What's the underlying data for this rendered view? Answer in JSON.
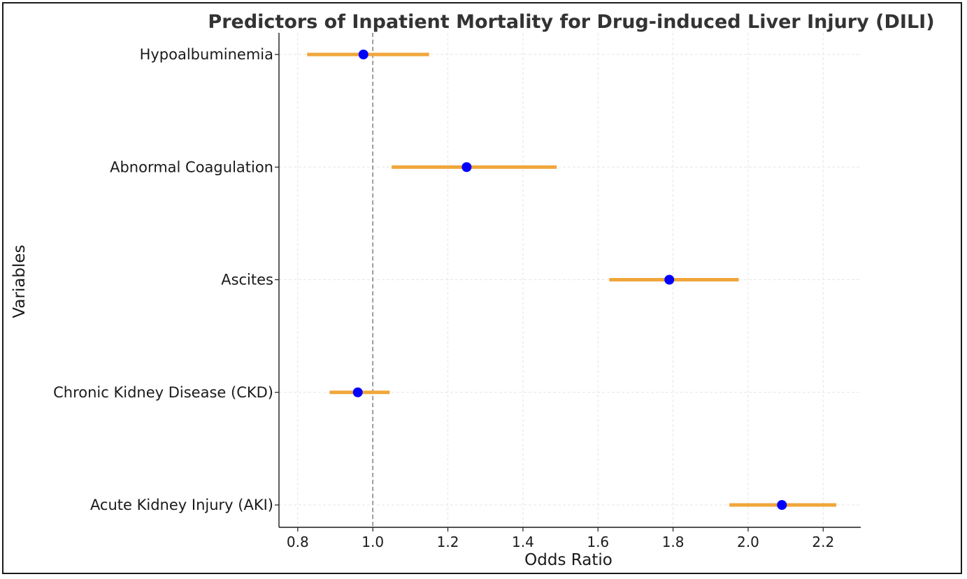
{
  "chart_data": {
    "type": "scatter",
    "title": "Predictors of Inpatient Mortality for Drug-induced Liver Injury (DILI)",
    "xlabel": "Odds Ratio",
    "ylabel": "Variables",
    "xlim": [
      0.75,
      2.3
    ],
    "xticks": [
      "0.8",
      "1.0",
      "1.2",
      "1.4",
      "1.6",
      "1.8",
      "2.0",
      "2.2"
    ],
    "reference_line": 1.0,
    "grid": true,
    "colors": {
      "point": "#0000ff",
      "interval": "#f0a63c",
      "reference": "#808080",
      "grid": "#e6e6e6"
    },
    "categories": [
      "Acute Kidney Injury (AKI)",
      "Chronic Kidney Disease (CKD)",
      "Ascites",
      "Abnormal Coagulation",
      "Hypoalbuminemia"
    ],
    "values": [
      2.09,
      0.96,
      1.79,
      1.25,
      0.975
    ],
    "ci_lower": [
      1.95,
      0.885,
      1.63,
      1.05,
      0.825
    ],
    "ci_upper": [
      2.235,
      1.045,
      1.975,
      1.49,
      1.15
    ]
  }
}
